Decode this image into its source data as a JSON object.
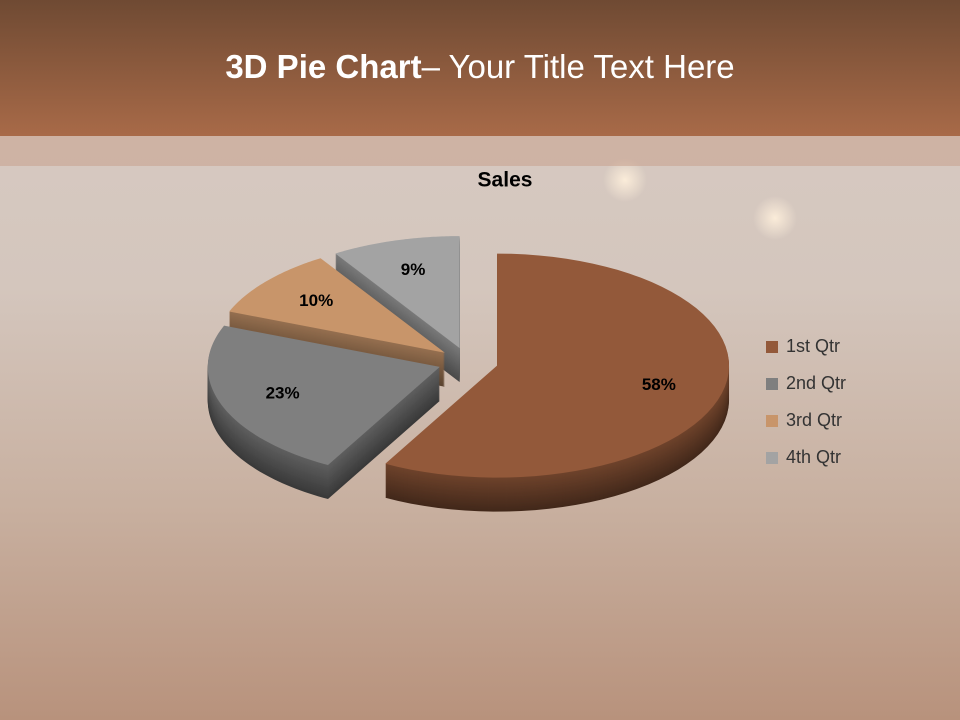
{
  "slide": {
    "title_bold": "3D Pie Chart",
    "title_rest": "– Your Title Text Here"
  },
  "chart_data": {
    "type": "pie",
    "title": "Sales",
    "categories": [
      "1st Qtr",
      "2nd Qtr",
      "3rd Qtr",
      "4th Qtr"
    ],
    "values": [
      58,
      23,
      10,
      9
    ],
    "value_labels": [
      "58%",
      "23%",
      "10%",
      "9%"
    ],
    "colors": [
      "#93593a",
      "#7f7f7f",
      "#c8956a",
      "#a3a3a3"
    ],
    "legend": "right"
  }
}
